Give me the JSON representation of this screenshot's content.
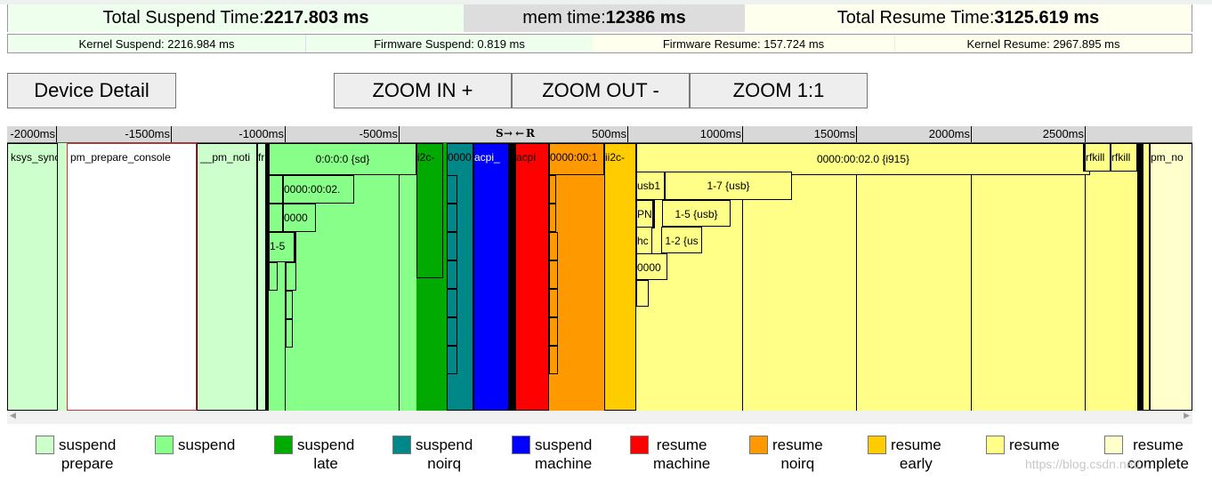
{
  "summary": {
    "total_suspend_label": "Total Suspend Time: ",
    "total_suspend_value": "2217.803 ms",
    "mem_label": "mem time: ",
    "mem_value": "12386 ms",
    "total_resume_label": "Total Resume Time: ",
    "total_resume_value": "3125.619 ms",
    "kernel_suspend": "Kernel Suspend: 2216.984 ms",
    "firmware_suspend": "Firmware Suspend: 0.819 ms",
    "firmware_resume": "Firmware Resume: 157.724 ms",
    "kernel_resume": "Kernel Resume: 2967.895 ms"
  },
  "buttons": {
    "device_detail": "Device Detail",
    "zoom_in": "ZOOM IN +",
    "zoom_out": "ZOOM OUT -",
    "zoom_reset": "ZOOM 1:1"
  },
  "timeline": {
    "ticks": [
      "-2000ms",
      "-1500ms",
      "-1000ms",
      "-500ms",
      "500ms",
      "1000ms",
      "1500ms",
      "2000ms",
      "2500ms"
    ],
    "suspend_marker": "S",
    "resume_marker": "R",
    "devices": {
      "ksys_sync": "ksys_sync",
      "pm_prepare_console": "pm_prepare_console",
      "pm_notifier": "__pm_noti",
      "freeze": "fr",
      "sd": "0:0:0:0 {sd}",
      "sd_child": "0000:00:02.",
      "sd_child2": "0000",
      "usb_1_5_s": "1-5",
      "i2c_s": "i2c-",
      "pci_noirq": "0000",
      "acpi_s": "acpi_",
      "acpi_r": "acpi",
      "pci_r_noirq": "0000:00:1",
      "i2c_r": "ii2c-",
      "i915": "0000:00:02.0 {i915}",
      "usb1": "usb1",
      "usb_1_7": "1-7 {usb}",
      "pn": "PN",
      "usb_1_5": "1-5 {usb}",
      "hc": "hc",
      "usb_1_2": "1-2 {us",
      "r_0000": "0000",
      "rfkill1": "rfkill",
      "rfkill2": "rfkill",
      "pm_notifier_r": "pm_no"
    }
  },
  "legend": [
    {
      "label": "suspend\nprepare",
      "color": "#ccffcc"
    },
    {
      "label": "suspend",
      "color": "#88ff88"
    },
    {
      "label": "suspend\nlate",
      "color": "#00aa00"
    },
    {
      "label": "suspend\nnoirq",
      "color": "#008888"
    },
    {
      "label": "suspend\nmachine",
      "color": "#0000ff"
    },
    {
      "label": "resume\nmachine",
      "color": "#ff0000"
    },
    {
      "label": "resume\nnoirq",
      "color": "#ff9900"
    },
    {
      "label": "resume\nearly",
      "color": "#ffcc00"
    },
    {
      "label": "resume",
      "color": "#ffff88"
    },
    {
      "label": "resume\ncomplete",
      "color": "#ffffcc"
    }
  ],
  "watermark": "https://blog.csdn.net/..."
}
